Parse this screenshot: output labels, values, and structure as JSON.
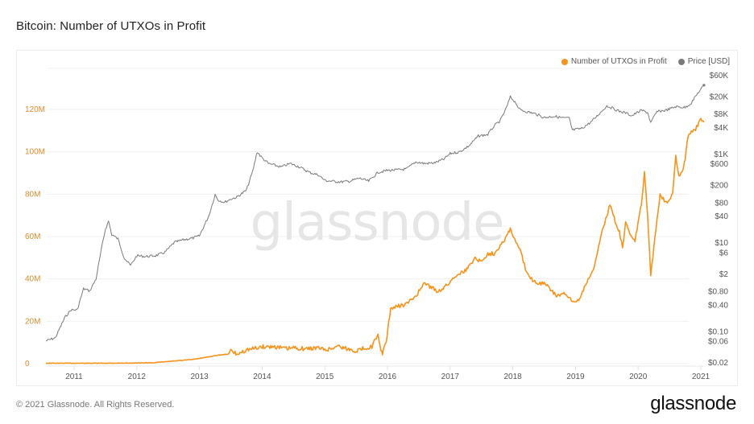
{
  "header": {
    "title": "Bitcoin: Number of UTXOs in Profit"
  },
  "footer": {
    "copyright": "© 2021 Glassnode. All Rights Reserved.",
    "logo_text": "glassnode"
  },
  "watermark": "glassnode",
  "colors": {
    "utxo": "#f7931a",
    "price": "#7a7a7a",
    "left_axis_text": "#e08a2a",
    "right_axis_text": "#555555",
    "grid": "#f0f0f0"
  },
  "chart_data": {
    "type": "line",
    "title": "Bitcoin: Number of UTXOs in Profit",
    "xlabel": "",
    "legend_position": "top-right",
    "grid": true,
    "legend": [
      {
        "name": "Number of UTXOs in Profit",
        "color": "#f7931a"
      },
      {
        "name": "Price [USD]",
        "color": "#7a7a7a"
      }
    ],
    "x_ticks": [
      "2011",
      "2012",
      "2013",
      "2014",
      "2015",
      "2016",
      "2017",
      "2018",
      "2019",
      "2020",
      "2021"
    ],
    "xlim": [
      2010.55,
      2021.1
    ],
    "y_left": {
      "label": "Number of UTXOs in Profit",
      "ticks": [
        "0",
        "20M",
        "40M",
        "60M",
        "80M",
        "100M",
        "120M"
      ],
      "tick_values": [
        0,
        20,
        40,
        60,
        80,
        100,
        120
      ],
      "units": "millions",
      "ylim": [
        0,
        120
      ]
    },
    "y_right": {
      "label": "Price [USD]",
      "scale": "log",
      "ticks": [
        "$0.02",
        "$0.06",
        "$0.10",
        "$0.40",
        "$0.80",
        "$2",
        "$6",
        "$10",
        "$40",
        "$80",
        "$200",
        "$600",
        "$1K",
        "$4K",
        "$8K",
        "$20K",
        "$60K"
      ],
      "tick_values": [
        0.02,
        0.06,
        0.1,
        0.4,
        0.8,
        2,
        6,
        10,
        40,
        80,
        200,
        600,
        1000,
        4000,
        8000,
        20000,
        60000
      ],
      "ylim": [
        0.02,
        60000
      ]
    },
    "series": [
      {
        "name": "Number of UTXOs in Profit",
        "axis": "left",
        "x": [
          2010.55,
          2011.0,
          2011.5,
          2012.0,
          2012.3,
          2012.5,
          2012.7,
          2012.9,
          2013.1,
          2013.3,
          2013.45,
          2013.5,
          2013.6,
          2013.75,
          2013.85,
          2014.0,
          2014.2,
          2014.4,
          2014.5,
          2014.7,
          2014.9,
          2015.0,
          2015.1,
          2015.2,
          2015.35,
          2015.5,
          2015.65,
          2015.75,
          2015.8,
          2015.85,
          2015.88,
          2015.92,
          2015.98,
          2016.05,
          2016.15,
          2016.3,
          2016.45,
          2016.55,
          2016.6,
          2016.75,
          2016.8,
          2016.95,
          2017.1,
          2017.25,
          2017.4,
          2017.5,
          2017.6,
          2017.7,
          2017.8,
          2017.9,
          2017.96,
          2018.0,
          2018.1,
          2018.2,
          2018.3,
          2018.4,
          2018.5,
          2018.6,
          2018.7,
          2018.8,
          2018.9,
          2018.95,
          2019.05,
          2019.2,
          2019.3,
          2019.4,
          2019.5,
          2019.55,
          2019.6,
          2019.7,
          2019.75,
          2019.8,
          2019.9,
          2019.95,
          2020.05,
          2020.1,
          2020.15,
          2020.2,
          2020.25,
          2020.35,
          2020.45,
          2020.55,
          2020.6,
          2020.65,
          2020.7,
          2020.75,
          2020.8,
          2020.9,
          2021.0,
          2021.05
        ],
        "values": [
          0.2,
          0.2,
          0.2,
          0.3,
          0.5,
          1.0,
          1.5,
          2.0,
          3.0,
          4.0,
          4.5,
          6.0,
          4.5,
          6.5,
          7.0,
          8.0,
          8.0,
          7.0,
          7.5,
          7.0,
          7.5,
          6.5,
          7.0,
          8.5,
          7.0,
          6.0,
          7.5,
          8.0,
          11.0,
          13.0,
          8.0,
          5.0,
          10.0,
          26.0,
          27.0,
          28.0,
          32.0,
          36.0,
          38.0,
          35.0,
          34.0,
          37.0,
          42.0,
          44.0,
          50.0,
          48.0,
          52.0,
          52.0,
          56.0,
          60.0,
          64.0,
          60.0,
          55.0,
          45.0,
          40.0,
          38.0,
          38.0,
          35.0,
          32.0,
          33.0,
          31.0,
          29.0,
          30.0,
          40.0,
          45.0,
          60.0,
          70.0,
          75.0,
          70.0,
          62.0,
          55.0,
          66.0,
          60.0,
          58.0,
          75.0,
          90.0,
          70.0,
          42.0,
          55.0,
          80.0,
          76.0,
          80.0,
          98.0,
          88.0,
          90.0,
          97.0,
          108.0,
          110.0,
          115.0,
          114.0
        ]
      },
      {
        "name": "Price [USD]",
        "axis": "right",
        "x": [
          2010.55,
          2010.7,
          2010.85,
          2010.95,
          2011.05,
          2011.15,
          2011.25,
          2011.35,
          2011.45,
          2011.5,
          2011.55,
          2011.6,
          2011.7,
          2011.8,
          2011.9,
          2012.0,
          2012.15,
          2012.3,
          2012.45,
          2012.6,
          2012.75,
          2012.9,
          2013.0,
          2013.15,
          2013.25,
          2013.3,
          2013.4,
          2013.5,
          2013.6,
          2013.75,
          2013.85,
          2013.92,
          2014.0,
          2014.1,
          2014.2,
          2014.3,
          2014.45,
          2014.6,
          2014.75,
          2014.9,
          2015.0,
          2015.1,
          2015.25,
          2015.4,
          2015.55,
          2015.7,
          2015.85,
          2016.0,
          2016.15,
          2016.3,
          2016.45,
          2016.6,
          2016.75,
          2016.9,
          2017.0,
          2017.15,
          2017.3,
          2017.45,
          2017.6,
          2017.7,
          2017.8,
          2017.9,
          2017.96,
          2018.05,
          2018.1,
          2018.2,
          2018.35,
          2018.5,
          2018.65,
          2018.8,
          2018.9,
          2018.95,
          2019.1,
          2019.25,
          2019.4,
          2019.5,
          2019.6,
          2019.7,
          2019.8,
          2019.9,
          2020.05,
          2020.15,
          2020.2,
          2020.3,
          2020.45,
          2020.6,
          2020.75,
          2020.85,
          2020.95,
          2021.05
        ],
        "values": [
          0.06,
          0.07,
          0.2,
          0.3,
          0.3,
          0.9,
          0.8,
          1.5,
          9.0,
          20.0,
          30.0,
          15.0,
          12.0,
          4.5,
          3.0,
          5.0,
          4.8,
          5.0,
          6.0,
          10.0,
          11.5,
          12.5,
          14.0,
          40.0,
          120.0,
          90.0,
          80.0,
          95.0,
          105.0,
          150.0,
          400.0,
          1100.0,
          800.0,
          600.0,
          550.0,
          500.0,
          600.0,
          500.0,
          380.0,
          330.0,
          250.0,
          240.0,
          230.0,
          240.0,
          280.0,
          240.0,
          380.0,
          420.0,
          430.0,
          450.0,
          650.0,
          600.0,
          620.0,
          750.0,
          1000.0,
          1100.0,
          1500.0,
          2500.0,
          2700.0,
          4200.0,
          5500.0,
          11000.0,
          19000.0,
          14000.0,
          10000.0,
          9000.0,
          8000.0,
          6500.0,
          7000.0,
          6400.0,
          6300.0,
          3400.0,
          3700.0,
          5200.0,
          8500.0,
          12000.0,
          10500.0,
          9000.0,
          8300.0,
          7200.0,
          9500.0,
          8500.0,
          5000.0,
          8800.0,
          9600.0,
          11500.0,
          11000.0,
          14000.0,
          23000.0,
          35000.0
        ]
      }
    ]
  }
}
